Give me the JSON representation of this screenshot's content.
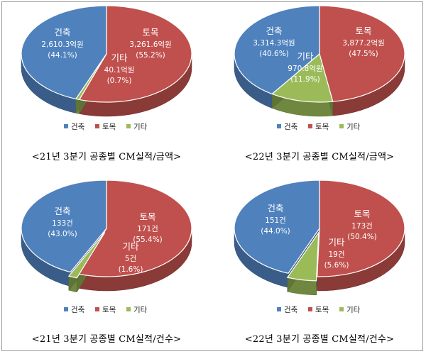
{
  "colors": {
    "building": "#4f81bd",
    "civil": "#c0504d",
    "other": "#9bbb59"
  },
  "legend": {
    "building": "건축",
    "civil": "토목",
    "other": "기타"
  },
  "chart_data": [
    {
      "type": "pie",
      "title": "<21년 3분기 공종별 CM실적/금액>",
      "slices": [
        {
          "name": "건축",
          "value": 2610.3,
          "value_label": "2,610.3억원",
          "percent_label": "(44.1%)"
        },
        {
          "name": "토목",
          "value": 3261.6,
          "value_label": "3,261.6억원",
          "percent_label": "(55.2%)"
        },
        {
          "name": "기타",
          "value": 40.1,
          "value_label": "40.1억원",
          "percent_label": "(0.7%)"
        }
      ]
    },
    {
      "type": "pie",
      "title": "<22년 3분기 공종별 CM실적/금액>",
      "slices": [
        {
          "name": "건축",
          "value": 3314.3,
          "value_label": "3,314.3억원",
          "percent_label": "(40.6%)"
        },
        {
          "name": "토목",
          "value": 3877.2,
          "value_label": "3,877.2억원",
          "percent_label": "(47.5%)"
        },
        {
          "name": "기타",
          "value": 970.8,
          "value_label": "970.8억원",
          "percent_label": "(11.9%)"
        }
      ]
    },
    {
      "type": "pie",
      "title": "<21년 3분기 공종별 CM실적/건수>",
      "slices": [
        {
          "name": "건축",
          "value": 133,
          "value_label": "133건",
          "percent_label": "(43.0%)"
        },
        {
          "name": "토목",
          "value": 171,
          "value_label": "171건",
          "percent_label": "(55.4%)"
        },
        {
          "name": "기타",
          "value": 5,
          "value_label": "5건",
          "percent_label": "(1.6%)"
        }
      ]
    },
    {
      "type": "pie",
      "title": "<22년 3분기 공종별 CM실적/건수>",
      "slices": [
        {
          "name": "건축",
          "value": 151,
          "value_label": "151건",
          "percent_label": "(44.0%)"
        },
        {
          "name": "토목",
          "value": 173,
          "value_label": "173건",
          "percent_label": "(50.4%)"
        },
        {
          "name": "기타",
          "value": 19,
          "value_label": "19건",
          "percent_label": "(5.6%)"
        }
      ]
    }
  ]
}
